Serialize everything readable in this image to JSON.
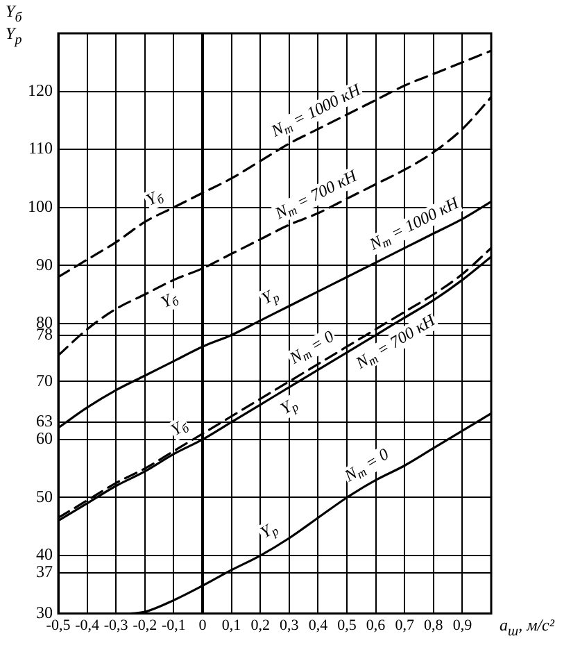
{
  "chart_data": {
    "type": "line",
    "ylabel": "Y$_{б}$ Y$_{р}$",
    "xlabel": "a$_{ш}$, м/с²",
    "xlim": [
      -0.5,
      1.0
    ],
    "xticks": [
      {
        "value": -0.5,
        "label": "-0,5"
      },
      {
        "value": -0.4,
        "label": "-0,4"
      },
      {
        "value": -0.3,
        "label": "-0,3"
      },
      {
        "value": -0.2,
        "label": "-0,2"
      },
      {
        "value": -0.1,
        "label": "-0,1"
      },
      0,
      {
        "value": 0.1,
        "label": "0,1"
      },
      {
        "value": 0.2,
        "label": "0,2"
      },
      {
        "value": 0.3,
        "label": "0,3"
      },
      {
        "value": 0.4,
        "label": "0,4"
      },
      {
        "value": 0.5,
        "label": "0,5"
      },
      {
        "value": 0.6,
        "label": "0,6"
      },
      {
        "value": 0.7,
        "label": "0,7"
      },
      {
        "value": 0.8,
        "label": "0,8"
      },
      {
        "value": 0.9,
        "label": "0,9"
      }
    ],
    "ylim": [
      30,
      130
    ],
    "yticks": [
      30,
      37,
      40,
      50,
      60,
      63,
      70,
      78,
      80,
      90,
      100,
      110,
      120
    ],
    "grid": true,
    "legend": false,
    "marker": "none",
    "series": [
      {
        "color": "#000000",
        "line_style": "dashed",
        "x": [
          -0.5,
          -0.4,
          -0.3,
          -0.2,
          -0.1,
          0,
          0.1,
          0.2,
          0.3,
          0.4,
          0.5,
          0.6,
          0.7,
          0.8,
          0.9,
          1.0
        ],
        "values": [
          88,
          91,
          94,
          97.5,
          100,
          102.5,
          105,
          108,
          111,
          113.5,
          116,
          118.5,
          121,
          123,
          125,
          127
        ]
      },
      {
        "color": "#000000",
        "line_style": "dashed",
        "x": [
          -0.5,
          -0.4,
          -0.3,
          -0.2,
          -0.1,
          0,
          0.1,
          0.2,
          0.3,
          0.4,
          0.5,
          0.6,
          0.7,
          0.8,
          0.9,
          1.0
        ],
        "values": [
          74.5,
          79,
          82.5,
          85,
          87.5,
          89.5,
          92,
          94.5,
          97,
          99,
          101.5,
          104,
          106.5,
          109.5,
          113.5,
          119
        ]
      },
      {
        "color": "#000000",
        "line_style": "solid",
        "x": [
          -0.5,
          -0.4,
          -0.3,
          -0.2,
          -0.1,
          0,
          0.1,
          0.2,
          0.3,
          0.4,
          0.5,
          0.6,
          0.7,
          0.8,
          0.9,
          1.0
        ],
        "values": [
          62,
          65.5,
          68.5,
          71,
          73.5,
          76,
          78,
          80.5,
          83,
          85.5,
          88,
          90.5,
          93,
          95.5,
          98,
          101
        ]
      },
      {
        "color": "#000000",
        "line_style": "dashed",
        "x": [
          -0.5,
          -0.4,
          -0.3,
          -0.2,
          -0.1,
          0,
          0.1,
          0.2,
          0.3,
          0.4,
          0.5,
          0.6,
          0.7,
          0.8,
          0.9,
          1.0
        ],
        "values": [
          46.5,
          49.5,
          52.5,
          55,
          58,
          61,
          64,
          67,
          70,
          73,
          76,
          79,
          82,
          85,
          88.5,
          93
        ]
      },
      {
        "color": "#000000",
        "line_style": "solid",
        "x": [
          -0.5,
          -0.4,
          -0.3,
          -0.2,
          -0.1,
          0,
          0.1,
          0.2,
          0.3,
          0.4,
          0.5,
          0.6,
          0.7,
          0.8,
          0.9,
          1.0
        ],
        "values": [
          46,
          49,
          52,
          54.5,
          57.5,
          60,
          63,
          66,
          69,
          72,
          75,
          78,
          81,
          84,
          87.5,
          91.5
        ]
      },
      {
        "color": "#000000",
        "line_style": "solid",
        "x": [
          -0.25,
          -0.2,
          -0.1,
          0,
          0.1,
          0.2,
          0.3,
          0.4,
          0.5,
          0.6,
          0.7,
          0.8,
          0.9,
          1.0
        ],
        "values": [
          30,
          30.3,
          32.3,
          34.8,
          37.5,
          40,
          43,
          46.5,
          50,
          53,
          55.5,
          58.5,
          61.5,
          64.5
        ]
      }
    ],
    "annotations": [
      {
        "text": "N$_{т}$ = 1000 кН",
        "x": 0.42,
        "y": 114
      },
      {
        "text": "N$_{т}$ = 700 кН",
        "x": 0.42,
        "y": 99.5
      },
      {
        "text": "N$_{т}$ = 1000 кН",
        "x": 0.76,
        "y": 94.5
      },
      {
        "text": "N$_{т}$ = 0",
        "x": 0.41,
        "y": 73.3
      },
      {
        "text": "N$_{т}$ = 700 кН",
        "x": 0.64,
        "y": 79.2
      },
      {
        "text": "N$_{т}$ = 0",
        "x": 0.6,
        "y": 53
      },
      {
        "text": "Y$_{б}$",
        "x": -0.14,
        "y": 99
      },
      {
        "text": "Y$_{б}$",
        "x": -0.14,
        "y": 86.5
      },
      {
        "text": "Y$_{р}$",
        "x": 0.26,
        "y": 82
      },
      {
        "text": "Y$_{б}$",
        "x": -0.05,
        "y": 59.5
      },
      {
        "text": "Y$_{р}$",
        "x": 0.27,
        "y": 68.1
      },
      {
        "text": "Y$_{р}$",
        "x": 0.26,
        "y": 41.8
      }
    ]
  }
}
